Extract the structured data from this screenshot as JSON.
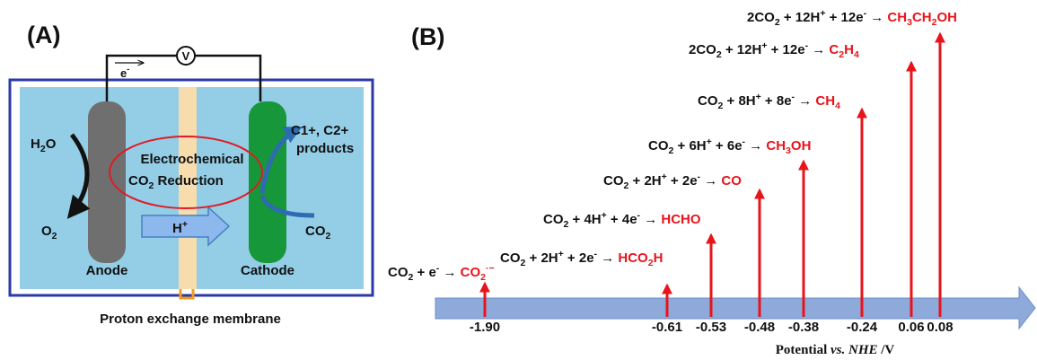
{
  "panel_a": {
    "label": "(A)",
    "meter": "V",
    "electron": [
      "e",
      {
        "sup": "-"
      }
    ],
    "water": [
      "H",
      {
        "sub": "2"
      },
      "O"
    ],
    "oxygen": [
      "O",
      {
        "sub": "2"
      }
    ],
    "anode": "Anode",
    "cathode": "Cathode",
    "products_1": "C1+, C2+",
    "products_2": "products",
    "co2": [
      "CO",
      {
        "sub": "2"
      }
    ],
    "proton": [
      "H",
      {
        "sup": "+"
      }
    ],
    "center_1": "Electrochemical",
    "center_2": [
      "CO",
      {
        "sub": "2"
      },
      " Reduction"
    ],
    "membrane": "Proton exchange membrane"
  },
  "panel_b": {
    "label": "(B)",
    "axis_title": [
      "Potential ",
      {
        "i": "vs. NHE"
      },
      " /V"
    ],
    "reactions": [
      {
        "equation": [
          "CO",
          {
            "sub": "2"
          },
          " + e",
          {
            "sup": "-"
          },
          " → "
        ],
        "product": [
          "CO",
          {
            "sub": "2"
          },
          {
            "sup": "·−"
          }
        ],
        "potential": "-1.90"
      },
      {
        "equation": [
          "CO",
          {
            "sub": "2"
          },
          " + 2H",
          {
            "sup": "+"
          },
          " + 2e",
          {
            "sup": "-"
          },
          " → "
        ],
        "product": [
          "HCO",
          {
            "sub": "2"
          },
          "H"
        ],
        "potential": "-0.61"
      },
      {
        "equation": [
          "CO",
          {
            "sub": "2"
          },
          " + 4H",
          {
            "sup": "+"
          },
          " + 4e",
          {
            "sup": "-"
          },
          " → "
        ],
        "product": [
          "HCHO"
        ],
        "potential": "-0.53"
      },
      {
        "equation": [
          "CO",
          {
            "sub": "2"
          },
          " + 2H",
          {
            "sup": "+"
          },
          " + 2e",
          {
            "sup": "-"
          },
          " → "
        ],
        "product": [
          "CO"
        ],
        "potential": "-0.48"
      },
      {
        "equation": [
          "CO",
          {
            "sub": "2"
          },
          " + 6H",
          {
            "sup": "+"
          },
          " + 6e",
          {
            "sup": "-"
          },
          " → "
        ],
        "product": [
          "CH",
          {
            "sub": "3"
          },
          "OH"
        ],
        "potential": "-0.38"
      },
      {
        "equation": [
          "CO",
          {
            "sub": "2"
          },
          " + 8H",
          {
            "sup": "+"
          },
          " + 8e",
          {
            "sup": "-"
          },
          " → "
        ],
        "product": [
          "CH",
          {
            "sub": "4"
          }
        ],
        "potential": "-0.24"
      },
      {
        "equation": [
          "2CO",
          {
            "sub": "2"
          },
          " + 12H",
          {
            "sup": "+"
          },
          " + 12e",
          {
            "sup": "-"
          },
          " → "
        ],
        "product": [
          "C",
          {
            "sub": "2"
          },
          "H",
          {
            "sub": "4"
          }
        ],
        "potential": "0.06"
      },
      {
        "equation": [
          "2CO",
          {
            "sub": "2"
          },
          " + 12H",
          {
            "sup": "+"
          },
          " + 12e",
          {
            "sup": "-"
          },
          " → "
        ],
        "product": [
          "CH",
          {
            "sub": "3"
          },
          "CH",
          {
            "sub": "2"
          },
          "OH"
        ],
        "potential": "0.08"
      }
    ]
  }
}
